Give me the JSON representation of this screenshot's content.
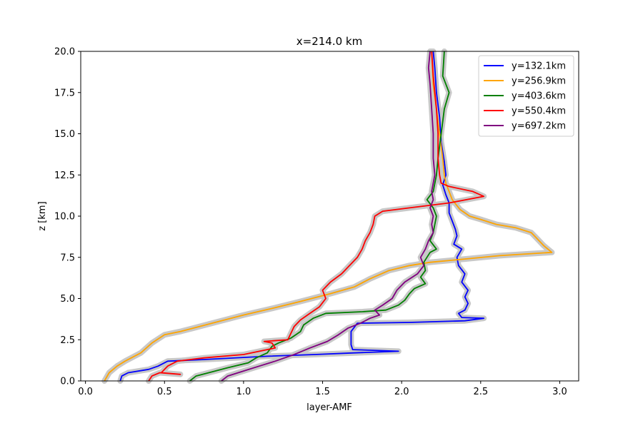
{
  "chart_data": {
    "type": "line",
    "title": "x=214.0 km",
    "xlabel": "layer-AMF",
    "ylabel": "z [km]",
    "xlim": [
      -0.03,
      3.12
    ],
    "ylim": [
      0,
      20
    ],
    "xticks": [
      0.0,
      0.5,
      1.0,
      1.5,
      2.0,
      2.5,
      3.0
    ],
    "xtick_labels": [
      "0.0",
      "0.5",
      "1.0",
      "1.5",
      "2.0",
      "2.5",
      "3.0"
    ],
    "yticks": [
      0.0,
      2.5,
      5.0,
      7.5,
      10.0,
      12.5,
      15.0,
      17.5,
      20.0
    ],
    "ytick_labels": [
      "0.0",
      "2.5",
      "5.0",
      "7.5",
      "10.0",
      "12.5",
      "15.0",
      "17.5",
      "20.0"
    ],
    "grid": false,
    "legend_position": "top-right",
    "uncertainty_band_color": "#c8c8c8",
    "series": [
      {
        "name": "y=132.1km",
        "color": "#0000ff",
        "points": [
          [
            0.22,
            0.0
          ],
          [
            0.23,
            0.3
          ],
          [
            0.27,
            0.5
          ],
          [
            0.4,
            0.7
          ],
          [
            0.46,
            0.9
          ],
          [
            0.5,
            1.1
          ],
          [
            0.52,
            1.2
          ],
          [
            0.75,
            1.3
          ],
          [
            1.15,
            1.5
          ],
          [
            1.45,
            1.6
          ],
          [
            1.7,
            1.7
          ],
          [
            1.98,
            1.8
          ],
          [
            1.69,
            1.9
          ],
          [
            1.68,
            2.2
          ],
          [
            1.68,
            3.0
          ],
          [
            1.72,
            3.5
          ],
          [
            2.05,
            3.55
          ],
          [
            2.4,
            3.65
          ],
          [
            2.52,
            3.8
          ],
          [
            2.38,
            3.85
          ],
          [
            2.36,
            4.1
          ],
          [
            2.4,
            4.3
          ],
          [
            2.42,
            4.7
          ],
          [
            2.4,
            5.1
          ],
          [
            2.42,
            5.5
          ],
          [
            2.38,
            6.0
          ],
          [
            2.4,
            6.5
          ],
          [
            2.36,
            7.0
          ],
          [
            2.35,
            7.5
          ],
          [
            2.38,
            8.0
          ],
          [
            2.33,
            8.3
          ],
          [
            2.35,
            8.8
          ],
          [
            2.34,
            9.2
          ],
          [
            2.32,
            9.7
          ],
          [
            2.3,
            10.2
          ],
          [
            2.3,
            10.8
          ],
          [
            2.28,
            11.3
          ],
          [
            2.26,
            11.9
          ],
          [
            2.28,
            12.5
          ],
          [
            2.27,
            13.3
          ],
          [
            2.25,
            14.5
          ],
          [
            2.24,
            16.0
          ],
          [
            2.22,
            17.5
          ],
          [
            2.21,
            19.0
          ],
          [
            2.2,
            20.0
          ]
        ]
      },
      {
        "name": "y=256.9km",
        "color": "#ffa500",
        "points": [
          [
            0.12,
            0.0
          ],
          [
            0.15,
            0.5
          ],
          [
            0.2,
            0.9
          ],
          [
            0.25,
            1.2
          ],
          [
            0.35,
            1.7
          ],
          [
            0.42,
            2.3
          ],
          [
            0.5,
            2.8
          ],
          [
            0.6,
            3.0
          ],
          [
            0.68,
            3.2
          ],
          [
            0.8,
            3.5
          ],
          [
            1.0,
            4.0
          ],
          [
            1.18,
            4.4
          ],
          [
            1.35,
            4.8
          ],
          [
            1.55,
            5.3
          ],
          [
            1.7,
            5.7
          ],
          [
            1.8,
            6.2
          ],
          [
            1.92,
            6.7
          ],
          [
            2.05,
            7.0
          ],
          [
            2.18,
            7.2
          ],
          [
            2.4,
            7.4
          ],
          [
            2.62,
            7.6
          ],
          [
            2.95,
            7.8
          ],
          [
            2.9,
            8.2
          ],
          [
            2.85,
            8.7
          ],
          [
            2.82,
            9.0
          ],
          [
            2.72,
            9.3
          ],
          [
            2.6,
            9.5
          ],
          [
            2.5,
            9.8
          ],
          [
            2.43,
            10.0
          ],
          [
            2.37,
            10.4
          ],
          [
            2.32,
            11.0
          ],
          [
            2.3,
            11.5
          ],
          [
            2.28,
            12.0
          ],
          [
            2.27,
            12.5
          ],
          [
            2.26,
            13.5
          ],
          [
            2.24,
            15.0
          ],
          [
            2.22,
            16.5
          ],
          [
            2.2,
            18.0
          ],
          [
            2.19,
            20.0
          ]
        ]
      },
      {
        "name": "y=403.6km",
        "color": "#008000",
        "points": [
          [
            0.66,
            0.0
          ],
          [
            0.7,
            0.3
          ],
          [
            0.78,
            0.5
          ],
          [
            0.9,
            0.8
          ],
          [
            1.03,
            1.1
          ],
          [
            1.08,
            1.4
          ],
          [
            1.15,
            1.7
          ],
          [
            1.18,
            2.1
          ],
          [
            1.22,
            2.3
          ],
          [
            1.3,
            2.6
          ],
          [
            1.36,
            3.0
          ],
          [
            1.38,
            3.4
          ],
          [
            1.44,
            3.8
          ],
          [
            1.52,
            4.1
          ],
          [
            1.75,
            4.2
          ],
          [
            1.9,
            4.3
          ],
          [
            1.98,
            4.6
          ],
          [
            2.02,
            4.9
          ],
          [
            2.05,
            5.3
          ],
          [
            2.08,
            5.6
          ],
          [
            2.15,
            5.9
          ],
          [
            2.12,
            6.3
          ],
          [
            2.15,
            6.7
          ],
          [
            2.14,
            7.2
          ],
          [
            2.18,
            7.8
          ],
          [
            2.22,
            8.0
          ],
          [
            2.18,
            8.5
          ],
          [
            2.2,
            9.0
          ],
          [
            2.21,
            9.5
          ],
          [
            2.22,
            10.0
          ],
          [
            2.2,
            10.5
          ],
          [
            2.16,
            11.0
          ],
          [
            2.2,
            11.5
          ],
          [
            2.22,
            12.5
          ],
          [
            2.23,
            13.5
          ],
          [
            2.25,
            15.0
          ],
          [
            2.27,
            16.5
          ],
          [
            2.3,
            17.5
          ],
          [
            2.26,
            18.5
          ],
          [
            2.27,
            20.0
          ]
        ]
      },
      {
        "name": "y=550.4km",
        "color": "#ff0000",
        "points": [
          [
            0.4,
            0.0
          ],
          [
            0.42,
            0.3
          ],
          [
            0.47,
            0.5
          ],
          [
            0.6,
            0.4
          ],
          [
            0.48,
            0.5
          ],
          [
            0.5,
            0.7
          ],
          [
            0.52,
            0.9
          ],
          [
            0.58,
            1.2
          ],
          [
            0.75,
            1.4
          ],
          [
            1.0,
            1.6
          ],
          [
            1.2,
            2.0
          ],
          [
            1.18,
            2.3
          ],
          [
            1.13,
            2.4
          ],
          [
            1.28,
            2.5
          ],
          [
            1.3,
            2.9
          ],
          [
            1.32,
            3.3
          ],
          [
            1.36,
            3.7
          ],
          [
            1.42,
            4.1
          ],
          [
            1.48,
            4.5
          ],
          [
            1.52,
            5.0
          ],
          [
            1.5,
            5.5
          ],
          [
            1.55,
            6.0
          ],
          [
            1.62,
            6.5
          ],
          [
            1.67,
            7.0
          ],
          [
            1.72,
            7.5
          ],
          [
            1.75,
            8.0
          ],
          [
            1.77,
            8.5
          ],
          [
            1.8,
            9.0
          ],
          [
            1.82,
            9.5
          ],
          [
            1.83,
            10.0
          ],
          [
            1.88,
            10.3
          ],
          [
            2.05,
            10.5
          ],
          [
            2.3,
            10.8
          ],
          [
            2.52,
            11.2
          ],
          [
            2.45,
            11.5
          ],
          [
            2.3,
            11.8
          ],
          [
            2.25,
            12.0
          ],
          [
            2.24,
            12.5
          ],
          [
            2.23,
            13.5
          ],
          [
            2.23,
            15.0
          ],
          [
            2.22,
            16.5
          ],
          [
            2.2,
            18.5
          ],
          [
            2.19,
            20.0
          ]
        ]
      },
      {
        "name": "y=697.2km",
        "color": "#800080",
        "points": [
          [
            0.86,
            0.0
          ],
          [
            0.9,
            0.3
          ],
          [
            1.0,
            0.6
          ],
          [
            1.1,
            0.9
          ],
          [
            1.2,
            1.2
          ],
          [
            1.32,
            1.6
          ],
          [
            1.42,
            2.0
          ],
          [
            1.53,
            2.4
          ],
          [
            1.6,
            2.8
          ],
          [
            1.66,
            3.2
          ],
          [
            1.74,
            3.5
          ],
          [
            1.8,
            3.8
          ],
          [
            1.86,
            4.0
          ],
          [
            1.83,
            4.3
          ],
          [
            1.88,
            4.6
          ],
          [
            1.94,
            5.0
          ],
          [
            1.97,
            5.5
          ],
          [
            2.02,
            6.0
          ],
          [
            2.1,
            6.5
          ],
          [
            2.14,
            7.0
          ],
          [
            2.12,
            7.5
          ],
          [
            2.15,
            8.0
          ],
          [
            2.17,
            8.5
          ],
          [
            2.2,
            9.0
          ],
          [
            2.19,
            9.5
          ],
          [
            2.2,
            10.0
          ],
          [
            2.18,
            10.5
          ],
          [
            2.2,
            11.0
          ],
          [
            2.19,
            11.5
          ],
          [
            2.2,
            12.0
          ],
          [
            2.21,
            12.5
          ],
          [
            2.2,
            13.5
          ],
          [
            2.2,
            15.0
          ],
          [
            2.19,
            16.5
          ],
          [
            2.18,
            18.0
          ],
          [
            2.17,
            19.0
          ],
          [
            2.18,
            20.0
          ]
        ]
      }
    ]
  }
}
